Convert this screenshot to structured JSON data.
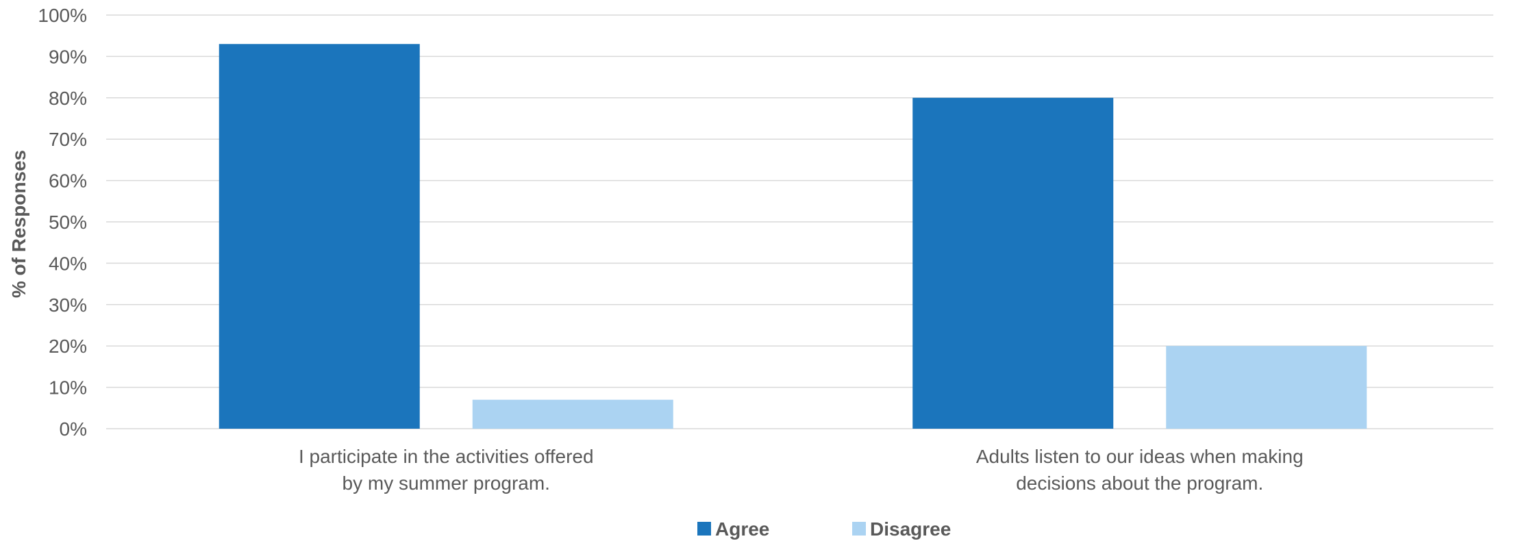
{
  "chart_data": {
    "type": "bar",
    "title": "",
    "xlabel": "",
    "ylabel": "% of Responses",
    "ylim": [
      0,
      100
    ],
    "yticks": [
      "0%",
      "10%",
      "20%",
      "30%",
      "40%",
      "50%",
      "60%",
      "70%",
      "80%",
      "90%",
      "100%"
    ],
    "grid": true,
    "legend_position": "bottom",
    "categories": [
      [
        "I participate in the activities offered",
        "by my summer program."
      ],
      [
        "Adults listen to our ideas when making",
        "decisions about the program."
      ]
    ],
    "series": [
      {
        "name": "Agree",
        "color": "#1b75bc",
        "values": [
          93,
          80
        ]
      },
      {
        "name": "Disagree",
        "color": "#abd3f2",
        "values": [
          7,
          20
        ]
      }
    ]
  }
}
